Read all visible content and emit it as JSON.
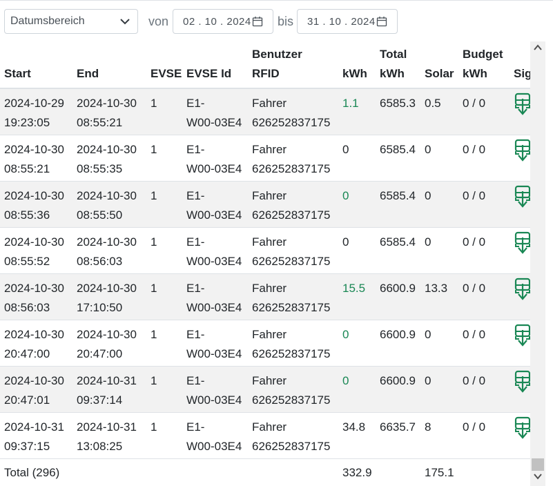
{
  "filter": {
    "range_select": "Datumsbereich",
    "from_label": "von",
    "from_date": "02 . 10 . 2024",
    "to_label": "bis",
    "to_date": "31 . 10 . 2024"
  },
  "columns": {
    "start": "Start",
    "end": "End",
    "evse": "EVSE",
    "evse_id": "EVSE Id",
    "user_l1": "Benutzer",
    "user_l2": "RFID",
    "kwh": "kWh",
    "total_l1": "Total",
    "total_l2": "kWh",
    "solar": "Solar",
    "budget_l1": "Budget",
    "budget_l2": "kWh",
    "signature": "Sig"
  },
  "rows": [
    {
      "start_date": "2024-10-29",
      "start_time": "19:23:05",
      "end_date": "2024-10-30",
      "end_time": "08:55:21",
      "evse": "1",
      "evse_id_l1": "E1-",
      "evse_id_l2": "W00-03E4",
      "user": "Fahrer",
      "rfid": "626252837175",
      "kwh": "1.1",
      "kwh_green": true,
      "total": "6585.3",
      "solar": "0.5",
      "budget": "0 / 0"
    },
    {
      "start_date": "2024-10-30",
      "start_time": "08:55:21",
      "end_date": "2024-10-30",
      "end_time": "08:55:35",
      "evse": "1",
      "evse_id_l1": "E1-",
      "evse_id_l2": "W00-03E4",
      "user": "Fahrer",
      "rfid": "626252837175",
      "kwh": "0",
      "kwh_green": false,
      "total": "6585.4",
      "solar": "0",
      "budget": "0 / 0"
    },
    {
      "start_date": "2024-10-30",
      "start_time": "08:55:36",
      "end_date": "2024-10-30",
      "end_time": "08:55:50",
      "evse": "1",
      "evse_id_l1": "E1-",
      "evse_id_l2": "W00-03E4",
      "user": "Fahrer",
      "rfid": "626252837175",
      "kwh": "0",
      "kwh_green": true,
      "total": "6585.4",
      "solar": "0",
      "budget": "0 / 0"
    },
    {
      "start_date": "2024-10-30",
      "start_time": "08:55:52",
      "end_date": "2024-10-30",
      "end_time": "08:56:03",
      "evse": "1",
      "evse_id_l1": "E1-",
      "evse_id_l2": "W00-03E4",
      "user": "Fahrer",
      "rfid": "626252837175",
      "kwh": "0",
      "kwh_green": false,
      "total": "6585.4",
      "solar": "0",
      "budget": "0 / 0"
    },
    {
      "start_date": "2024-10-30",
      "start_time": "08:56:03",
      "end_date": "2024-10-30",
      "end_time": "17:10:50",
      "evse": "1",
      "evse_id_l1": "E1-",
      "evse_id_l2": "W00-03E4",
      "user": "Fahrer",
      "rfid": "626252837175",
      "kwh": "15.5",
      "kwh_green": true,
      "total": "6600.9",
      "solar": "13.3",
      "budget": "0 / 0"
    },
    {
      "start_date": "2024-10-30",
      "start_time": "20:47:00",
      "end_date": "2024-10-30",
      "end_time": "20:47:00",
      "evse": "1",
      "evse_id_l1": "E1-",
      "evse_id_l2": "W00-03E4",
      "user": "Fahrer",
      "rfid": "626252837175",
      "kwh": "0",
      "kwh_green": true,
      "total": "6600.9",
      "solar": "0",
      "budget": "0 / 0"
    },
    {
      "start_date": "2024-10-30",
      "start_time": "20:47:01",
      "end_date": "2024-10-31",
      "end_time": "09:37:14",
      "evse": "1",
      "evse_id_l1": "E1-",
      "evse_id_l2": "W00-03E4",
      "user": "Fahrer",
      "rfid": "626252837175",
      "kwh": "0",
      "kwh_green": true,
      "total": "6600.9",
      "solar": "0",
      "budget": "0 / 0"
    },
    {
      "start_date": "2024-10-31",
      "start_time": "09:37:15",
      "end_date": "2024-10-31",
      "end_time": "13:08:25",
      "evse": "1",
      "evse_id_l1": "E1-",
      "evse_id_l2": "W00-03E4",
      "user": "Fahrer",
      "rfid": "626252837175",
      "kwh": "34.8",
      "kwh_green": false,
      "total": "6635.7",
      "solar": "8",
      "budget": "0 / 0"
    }
  ],
  "total": {
    "label": "Total (296)",
    "kwh": "332.9",
    "solar": "175.1"
  },
  "colors": {
    "accent_green": "#198754",
    "row_stripe": "#f2f2f2"
  },
  "icons": {
    "range_select": "chevron-down-icon",
    "date_picker": "calendar-icon",
    "signature": "signature-download-icon"
  }
}
